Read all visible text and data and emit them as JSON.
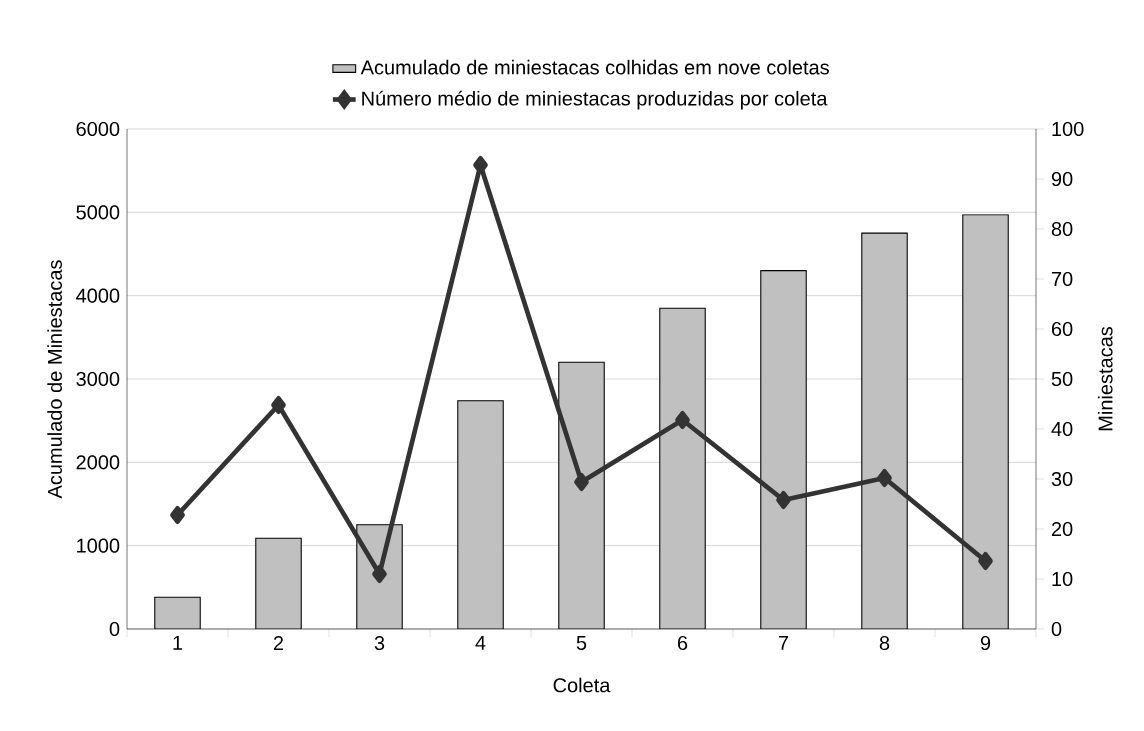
{
  "chart_data": {
    "type": "bar",
    "xlabel": "Coleta",
    "ylabel": "Acumulado de Miniestacas",
    "y2label": "Miniestacas",
    "categories": [
      "1",
      "2",
      "3",
      "4",
      "5",
      "6",
      "7",
      "8",
      "9"
    ],
    "series": [
      {
        "name": "Acumulado de miniestacas colhidas em nove coletas",
        "color": "#c0c0c0",
        "values": [
          380,
          1090,
          1250,
          2740,
          3200,
          3850,
          4300,
          4750,
          4970
        ]
      },
      {
        "name": "Número médio de miniestacas produzidas por coleta",
        "type": "line",
        "axis": "y2",
        "color": "#333333",
        "marker": "diamond",
        "values": [
          22.8,
          44.8,
          11,
          92.8,
          29.4,
          41.8,
          25.8,
          30.2,
          13.6
        ]
      }
    ],
    "ylim": [
      0,
      6000
    ],
    "yticks": [
      0,
      1000,
      2000,
      3000,
      4000,
      5000,
      6000
    ],
    "y2lim": [
      0,
      100
    ],
    "y2ticks": [
      0,
      10,
      20,
      30,
      40,
      50,
      60,
      70,
      80,
      90,
      100
    ],
    "grid": "y",
    "legend": "top"
  }
}
